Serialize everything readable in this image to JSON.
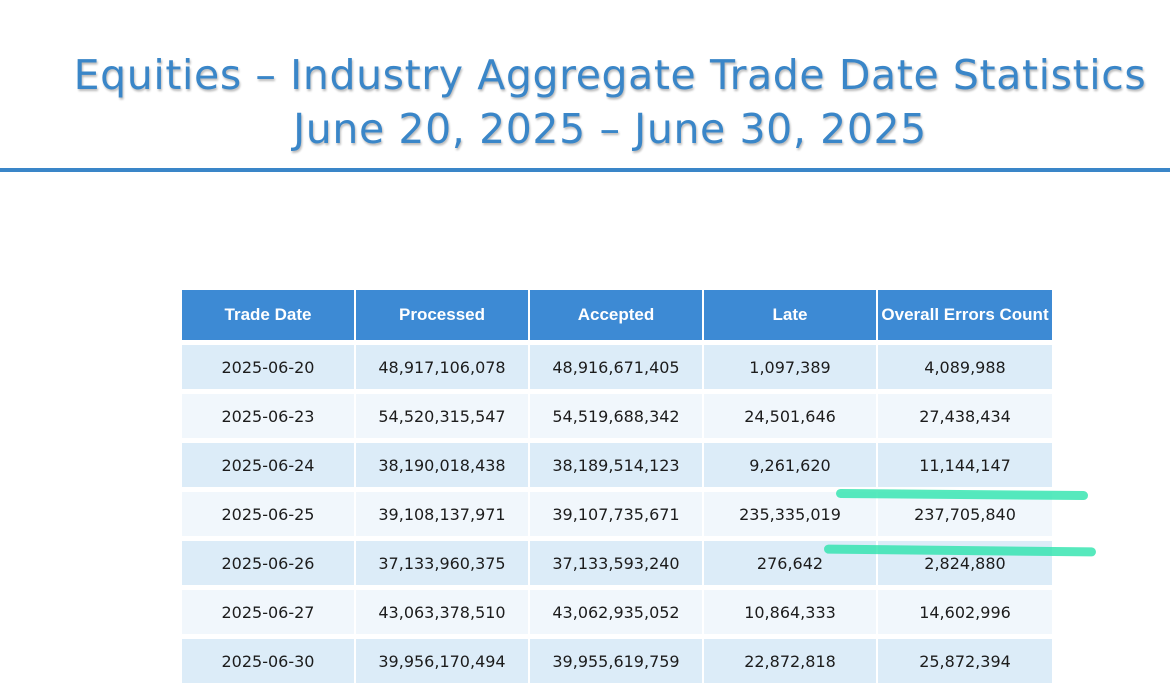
{
  "title": {
    "line1": "Equities – Industry Aggregate Trade Date Statistics",
    "line2": "June 20, 2025 – June 30, 2025"
  },
  "colors": {
    "accent": "#3a86c8",
    "header_bg": "#3d8ad4",
    "row_odd": "#dcecf8",
    "row_even": "#f1f7fc",
    "highlight": "#2de3ad"
  },
  "table": {
    "headers": [
      "Trade Date",
      "Processed",
      "Accepted",
      "Late",
      "Overall Errors Count"
    ],
    "rows": [
      [
        "2025-06-20",
        "48,917,106,078",
        "48,916,671,405",
        "1,097,389",
        "4,089,988"
      ],
      [
        "2025-06-23",
        "54,520,315,547",
        "54,519,688,342",
        "24,501,646",
        "27,438,434"
      ],
      [
        "2025-06-24",
        "38,190,018,438",
        "38,189,514,123",
        "9,261,620",
        "11,144,147"
      ],
      [
        "2025-06-25",
        "39,108,137,971",
        "39,107,735,671",
        "235,335,019",
        "237,705,840"
      ],
      [
        "2025-06-26",
        "37,133,960,375",
        "37,133,593,240",
        "276,642",
        "2,824,880"
      ],
      [
        "2025-06-27",
        "43,063,378,510",
        "43,062,935,052",
        "10,864,333",
        "14,602,996"
      ],
      [
        "2025-06-30",
        "39,956,170,494",
        "39,955,619,759",
        "22,872,818",
        "25,872,394"
      ]
    ]
  }
}
